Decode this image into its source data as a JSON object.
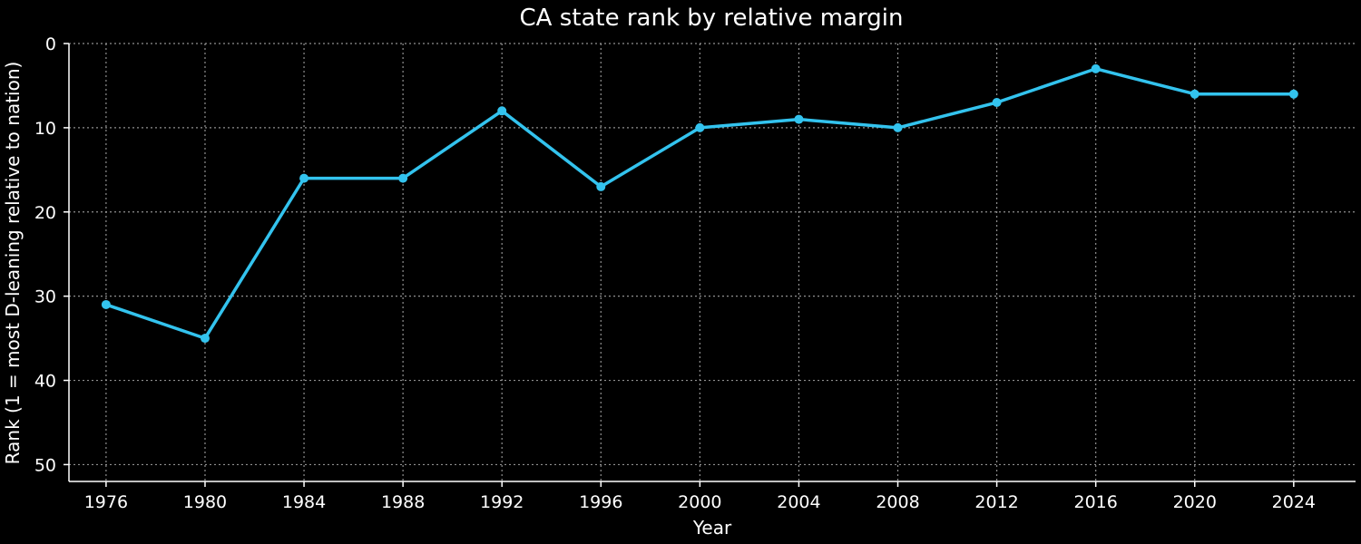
{
  "chart_data": {
    "type": "line",
    "title": "CA state rank by relative margin",
    "xlabel": "Year",
    "ylabel": "Rank (1 = most D-leaning relative to nation)",
    "x": [
      1976,
      1980,
      1984,
      1988,
      1992,
      1996,
      2000,
      2004,
      2008,
      2012,
      2016,
      2020,
      2024
    ],
    "series": [
      {
        "values": [
          31,
          35,
          16,
          16,
          8,
          17,
          10,
          9,
          10,
          7,
          3,
          6,
          6
        ],
        "color": "#33c3ee"
      }
    ],
    "xlim": [
      1974.5,
      2026.5
    ],
    "ylim": [
      52,
      0
    ],
    "y_inverted": true,
    "xticks": [
      "1976",
      "1980",
      "1984",
      "1988",
      "1992",
      "1996",
      "2000",
      "2004",
      "2008",
      "2012",
      "2016",
      "2020",
      "2024"
    ],
    "yticks": [
      "0",
      "10",
      "20",
      "30",
      "40",
      "50"
    ],
    "grid": true,
    "background": "#000000",
    "text_color": "#ffffff"
  }
}
